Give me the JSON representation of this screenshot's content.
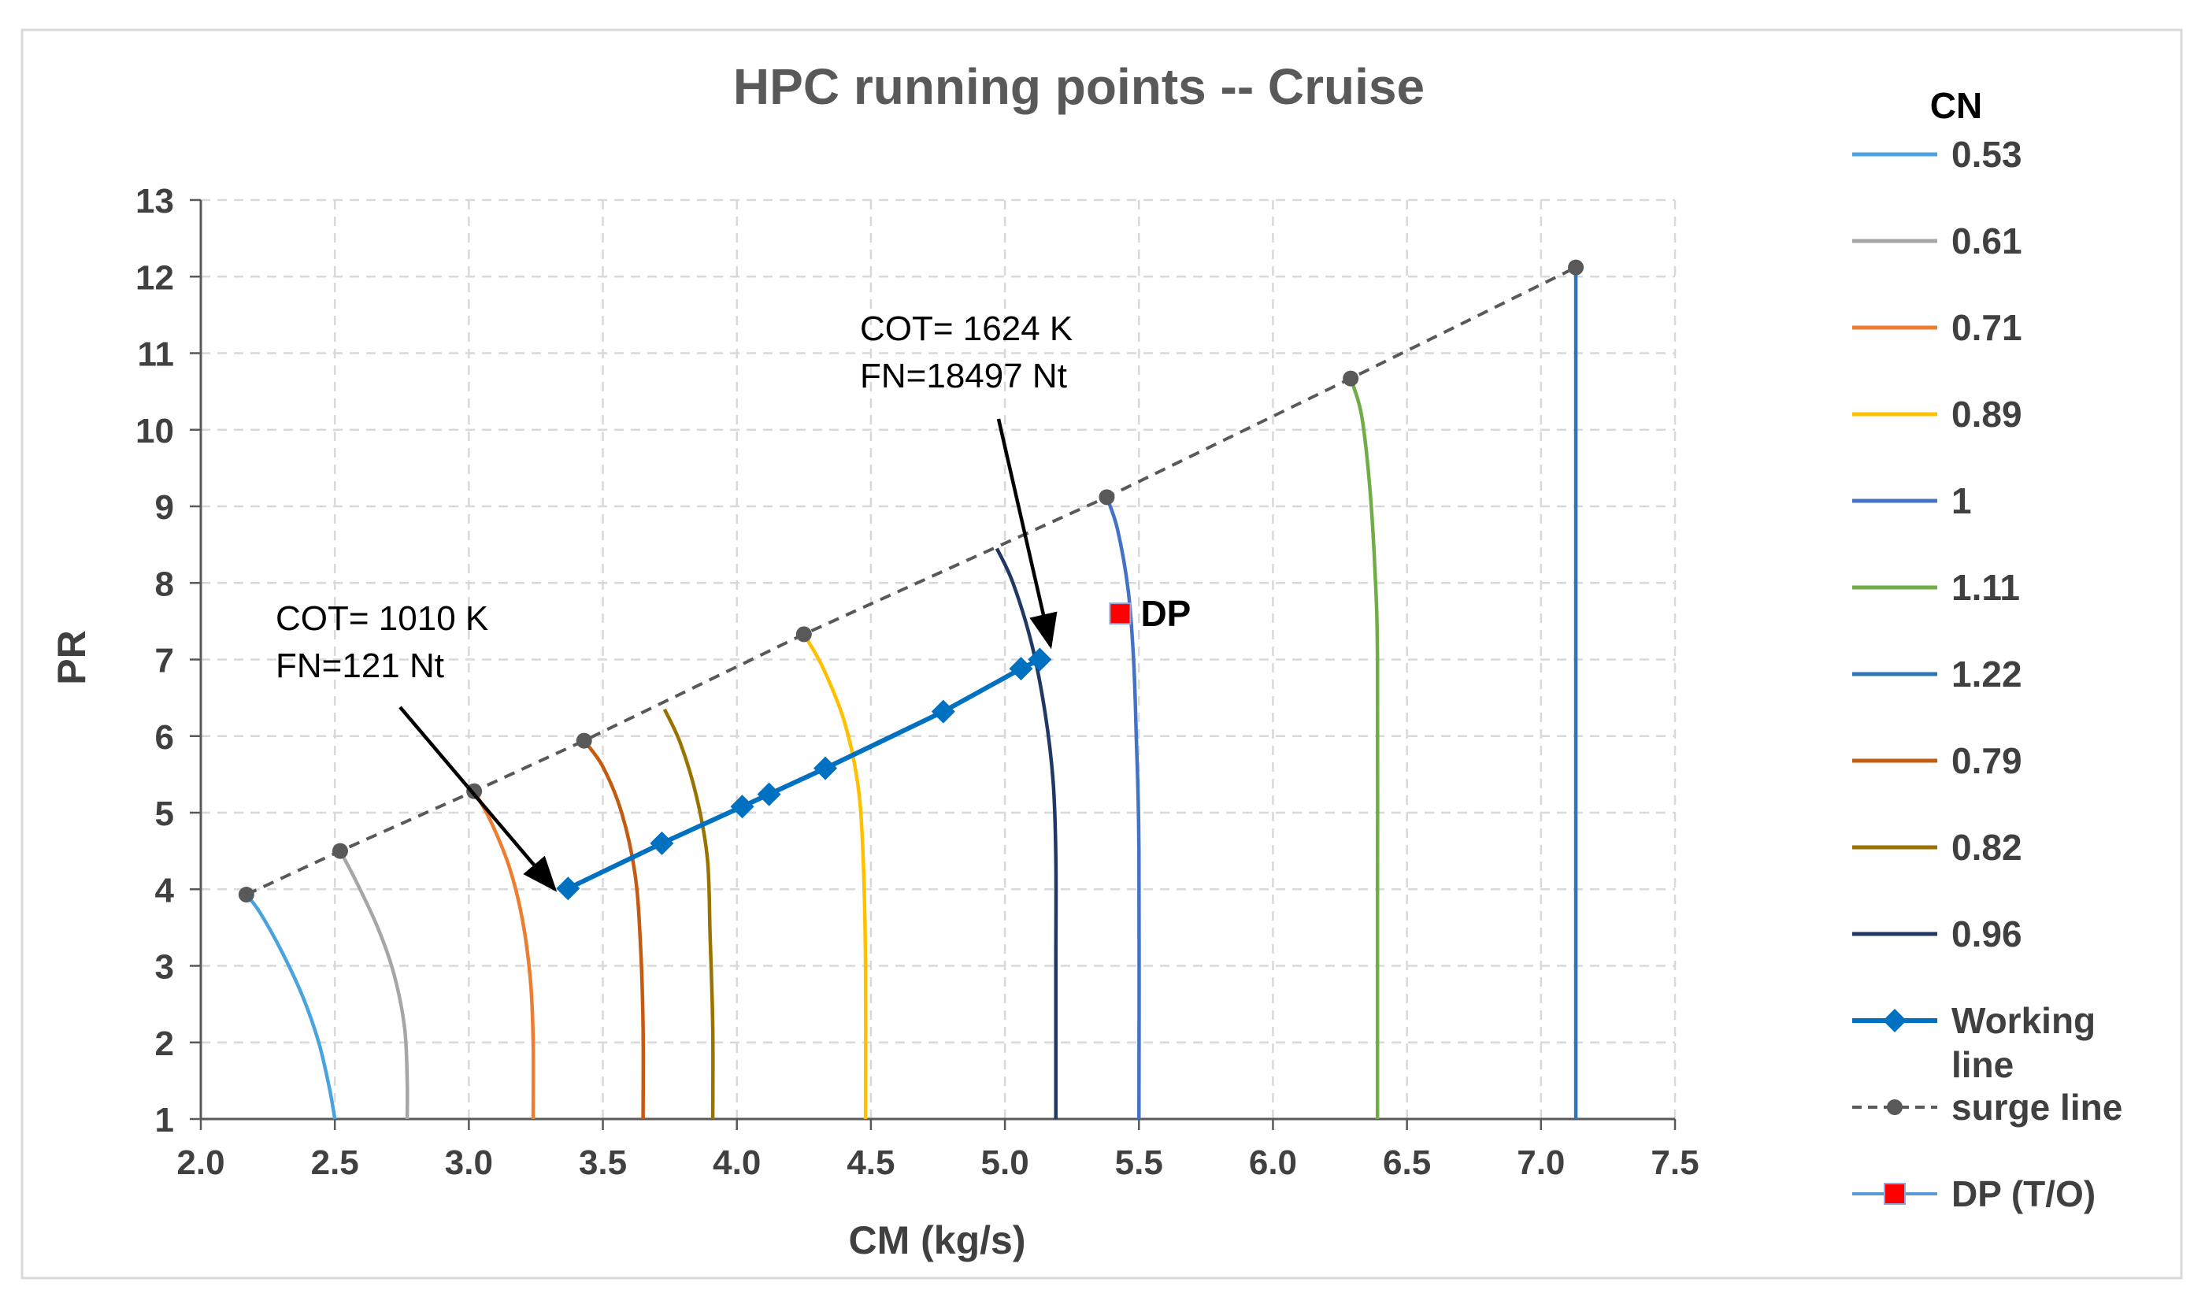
{
  "chart_data": {
    "type": "line",
    "title": "HPC running points -- Cruise",
    "xlabel": "CM (kg/s)",
    "ylabel": "PR",
    "xlim": [
      2.0,
      7.5
    ],
    "ylim": [
      1,
      13
    ],
    "xticks": [
      "2.0",
      "2.5",
      "3.0",
      "3.5",
      "4.0",
      "4.5",
      "5.0",
      "5.5",
      "6.0",
      "6.5",
      "7.0",
      "7.5"
    ],
    "yticks": [
      "1",
      "2",
      "3",
      "4",
      "5",
      "6",
      "7",
      "8",
      "9",
      "10",
      "11",
      "12",
      "13"
    ],
    "grid": true,
    "legend_title": "CN",
    "legend_position": "right",
    "speed_lines": [
      {
        "name": "0.53",
        "color": "#4aa3df",
        "points": [
          [
            2.17,
            3.93
          ],
          [
            2.22,
            3.7
          ],
          [
            2.3,
            3.2
          ],
          [
            2.38,
            2.6
          ],
          [
            2.44,
            2.0
          ],
          [
            2.48,
            1.4
          ],
          [
            2.5,
            1.0
          ]
        ]
      },
      {
        "name": "0.61",
        "color": "#a6a6a6",
        "points": [
          [
            2.52,
            4.5
          ],
          [
            2.58,
            4.1
          ],
          [
            2.66,
            3.5
          ],
          [
            2.72,
            2.9
          ],
          [
            2.76,
            2.2
          ],
          [
            2.77,
            1.5
          ],
          [
            2.77,
            1.0
          ]
        ]
      },
      {
        "name": "0.71",
        "color": "#ed7d31",
        "points": [
          [
            3.02,
            5.28
          ],
          [
            3.08,
            4.9
          ],
          [
            3.15,
            4.3
          ],
          [
            3.2,
            3.6
          ],
          [
            3.23,
            2.8
          ],
          [
            3.24,
            2.0
          ],
          [
            3.24,
            1.0
          ]
        ]
      },
      {
        "name": "0.89",
        "color": "#ffc000",
        "points": [
          [
            4.25,
            7.33
          ],
          [
            4.32,
            6.9
          ],
          [
            4.4,
            6.2
          ],
          [
            4.45,
            5.4
          ],
          [
            4.47,
            4.5
          ],
          [
            4.48,
            3.0
          ],
          [
            4.48,
            1.0
          ]
        ]
      },
      {
        "name": "1",
        "color": "#4472c4",
        "points": [
          [
            5.38,
            9.12
          ],
          [
            5.42,
            8.7
          ],
          [
            5.46,
            7.9
          ],
          [
            5.48,
            7.0
          ],
          [
            5.49,
            6.0
          ],
          [
            5.5,
            4.5
          ],
          [
            5.5,
            1.0
          ]
        ]
      },
      {
        "name": "1.11",
        "color": "#70ad47",
        "points": [
          [
            6.29,
            10.67
          ],
          [
            6.33,
            10.2
          ],
          [
            6.36,
            9.3
          ],
          [
            6.38,
            8.2
          ],
          [
            6.39,
            7.0
          ],
          [
            6.39,
            4.0
          ],
          [
            6.39,
            1.0
          ]
        ]
      },
      {
        "name": "1.22",
        "color": "#2e75b6",
        "points": [
          [
            7.13,
            12.12
          ],
          [
            7.13,
            11.0
          ],
          [
            7.13,
            8.0
          ],
          [
            7.13,
            4.0
          ],
          [
            7.13,
            1.0
          ]
        ]
      },
      {
        "name": "0.79",
        "color": "#c55a11",
        "points": [
          [
            3.43,
            5.94
          ],
          [
            3.5,
            5.6
          ],
          [
            3.57,
            5.0
          ],
          [
            3.62,
            4.2
          ],
          [
            3.64,
            3.3
          ],
          [
            3.65,
            2.2
          ],
          [
            3.65,
            1.0
          ]
        ]
      },
      {
        "name": "0.82",
        "color": "#997300",
        "points": [
          [
            3.73,
            6.35
          ],
          [
            3.79,
            5.9
          ],
          [
            3.85,
            5.2
          ],
          [
            3.89,
            4.4
          ],
          [
            3.9,
            3.4
          ],
          [
            3.91,
            2.2
          ],
          [
            3.91,
            1.0
          ]
        ]
      },
      {
        "name": "0.96",
        "color": "#203864",
        "points": [
          [
            4.97,
            8.45
          ],
          [
            5.03,
            8.0
          ],
          [
            5.1,
            7.2
          ],
          [
            5.15,
            6.3
          ],
          [
            5.18,
            5.4
          ],
          [
            5.19,
            4.4
          ],
          [
            5.19,
            3.0
          ],
          [
            5.19,
            1.0
          ]
        ]
      }
    ],
    "working_line": {
      "name": "Working line",
      "color": "#0070c0",
      "points": [
        [
          3.37,
          4.01
        ],
        [
          3.72,
          4.6
        ],
        [
          4.02,
          5.08
        ],
        [
          4.12,
          5.24
        ],
        [
          4.33,
          5.58
        ],
        [
          4.77,
          6.32
        ],
        [
          5.06,
          6.88
        ],
        [
          5.13,
          7.0
        ]
      ]
    },
    "surge_line": {
      "name": "surge line",
      "color": "#595959",
      "points": [
        [
          2.17,
          3.93
        ],
        [
          2.52,
          4.5
        ],
        [
          3.02,
          5.28
        ],
        [
          3.43,
          5.94
        ],
        [
          4.25,
          7.33
        ],
        [
          5.38,
          9.12
        ],
        [
          6.29,
          10.67
        ],
        [
          7.13,
          12.12
        ]
      ]
    },
    "design_point": {
      "name": "DP (T/O)",
      "label": "DP",
      "color": "#ff0000",
      "x": 5.43,
      "y": 7.6
    },
    "annotations": [
      {
        "lines": [
          "COT= 1010 K",
          "FN=121 Nt"
        ],
        "arrow_to": [
          3.32,
          4.0
        ]
      },
      {
        "lines": [
          "COT= 1624 K",
          "FN=18497 Nt"
        ],
        "arrow_to": [
          5.17,
          7.18
        ]
      }
    ]
  }
}
